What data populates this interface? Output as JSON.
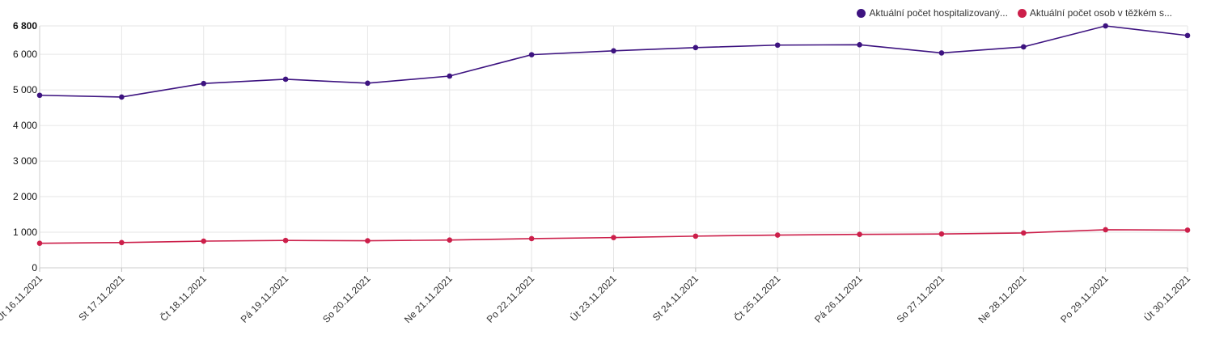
{
  "chart_data": {
    "type": "line",
    "categories": [
      "Út 16.11.2021",
      "St 17.11.2021",
      "Čt 18.11.2021",
      "Pá 19.11.2021",
      "So 20.11.2021",
      "Ne 21.11.2021",
      "Po 22.11.2021",
      "Út 23.11.2021",
      "St 24.11.2021",
      "Čt 25.11.2021",
      "Pá 26.11.2021",
      "So 27.11.2021",
      "Ne 28.11.2021",
      "Po 29.11.2021",
      "Út 30.11.2021"
    ],
    "series": [
      {
        "name": "Aktuální počet hospitalizovaný...",
        "color": "#3d1380",
        "values": [
          4850,
          4800,
          5180,
          5300,
          5190,
          5390,
          5990,
          6100,
          6190,
          6260,
          6270,
          6040,
          6210,
          6800,
          6530
        ]
      },
      {
        "name": "Aktuální počet osob v těžkém s...",
        "color": "#cc1f4a",
        "values": [
          690,
          710,
          750,
          770,
          760,
          780,
          820,
          850,
          890,
          920,
          940,
          950,
          980,
          1070,
          1060
        ]
      }
    ],
    "y_ticks": [
      {
        "value": 0,
        "label": "0"
      },
      {
        "value": 1000,
        "label": "1 000"
      },
      {
        "value": 2000,
        "label": "2 000"
      },
      {
        "value": 3000,
        "label": "3 000"
      },
      {
        "value": 4000,
        "label": "4 000"
      },
      {
        "value": 5000,
        "label": "5 000"
      },
      {
        "value": 6000,
        "label": "6 000"
      },
      {
        "value": 6800,
        "label": "6 800"
      }
    ],
    "ylim": [
      0,
      6800
    ],
    "title": "",
    "xlabel": "",
    "ylabel": "",
    "grid": true,
    "legend_position": "top-right"
  }
}
